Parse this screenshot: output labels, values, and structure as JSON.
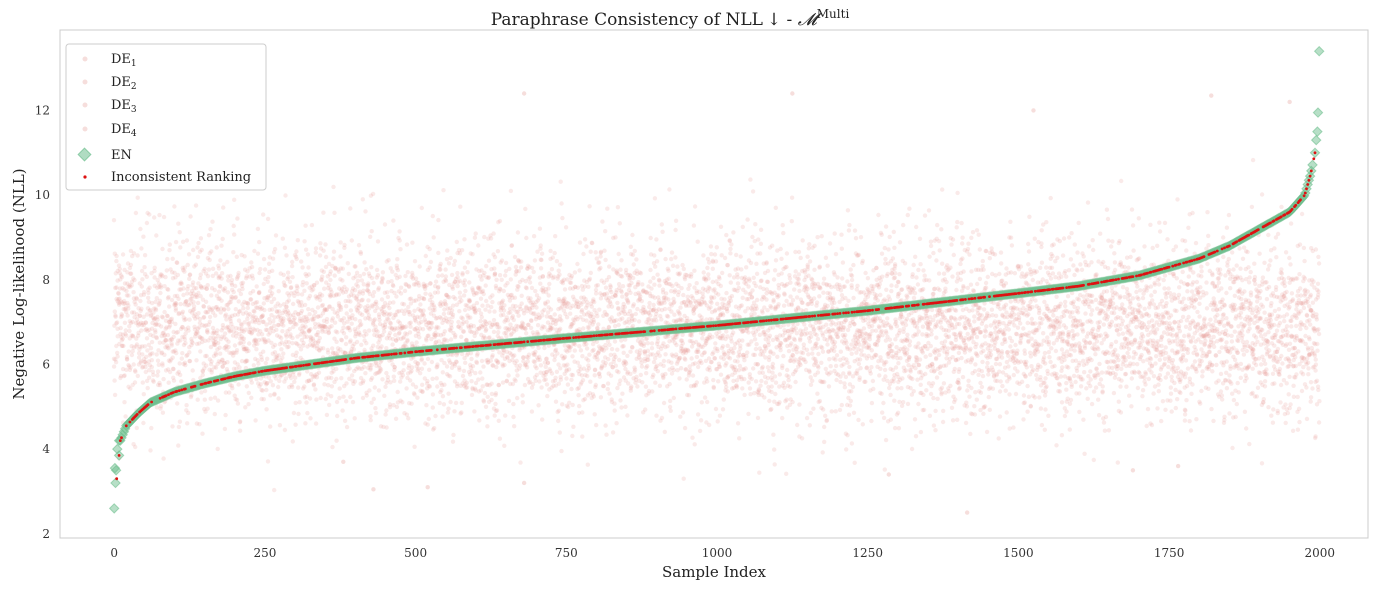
{
  "chart_data": {
    "type": "scatter",
    "title_parts": {
      "main": "Paraphrase Consistency of NLL",
      "arrow": "↓",
      "dash": " - ",
      "model_symbol": "𝓜",
      "superscript": "Multi"
    },
    "xlabel": "Sample Index",
    "ylabel": "Negative Log-likelihood (NLL)",
    "xlim": [
      -90,
      2080
    ],
    "ylim": [
      1.9,
      13.9
    ],
    "x_ticks": [
      0,
      250,
      500,
      750,
      1000,
      1250,
      1500,
      1750,
      2000
    ],
    "y_ticks": [
      2,
      4,
      6,
      8,
      10,
      12
    ],
    "grid": false,
    "legend_position": "top-left",
    "legend": [
      {
        "base": "DE",
        "sub": "1"
      },
      {
        "base": "DE",
        "sub": "2"
      },
      {
        "base": "DE",
        "sub": "3"
      },
      {
        "base": "DE",
        "sub": "4"
      },
      {
        "base": "EN",
        "sub": ""
      },
      {
        "base": "Inconsistent Ranking",
        "sub": ""
      }
    ],
    "colors": {
      "de": "#e6a19a",
      "en": "#6fbf90",
      "inconsistent": "#dd1111"
    },
    "n_samples": 2000,
    "en_curve_knots": [
      [
        0,
        2.6
      ],
      [
        3,
        3.2
      ],
      [
        6,
        3.5
      ],
      [
        10,
        4.2
      ],
      [
        20,
        4.55
      ],
      [
        40,
        4.85
      ],
      [
        60,
        5.1
      ],
      [
        100,
        5.35
      ],
      [
        150,
        5.55
      ],
      [
        200,
        5.72
      ],
      [
        250,
        5.85
      ],
      [
        300,
        5.95
      ],
      [
        400,
        6.15
      ],
      [
        500,
        6.3
      ],
      [
        600,
        6.43
      ],
      [
        750,
        6.62
      ],
      [
        1000,
        6.92
      ],
      [
        1250,
        7.27
      ],
      [
        1500,
        7.68
      ],
      [
        1600,
        7.85
      ],
      [
        1700,
        8.1
      ],
      [
        1800,
        8.5
      ],
      [
        1850,
        8.8
      ],
      [
        1900,
        9.2
      ],
      [
        1950,
        9.6
      ],
      [
        1975,
        10.0
      ],
      [
        1985,
        10.5
      ],
      [
        1992,
        11.0
      ],
      [
        1995,
        11.5
      ],
      [
        1999,
        13.4
      ]
    ],
    "en_highlight_points": [
      {
        "x": 0,
        "y": 2.6
      },
      {
        "x": 2,
        "y": 3.2
      },
      {
        "x": 3,
        "y": 3.5
      },
      {
        "x": 1,
        "y": 3.55
      },
      {
        "x": 5,
        "y": 4.0
      },
      {
        "x": 8,
        "y": 4.2
      },
      {
        "x": 1992,
        "y": 11.0
      },
      {
        "x": 1994,
        "y": 11.3
      },
      {
        "x": 1996,
        "y": 11.5
      },
      {
        "x": 1997,
        "y": 11.95
      },
      {
        "x": 1999,
        "y": 13.4
      }
    ],
    "de_outliers": [
      {
        "x": 680,
        "y": 12.4
      },
      {
        "x": 1125,
        "y": 12.4
      },
      {
        "x": 1820,
        "y": 12.35
      },
      {
        "x": 1525,
        "y": 12.0
      },
      {
        "x": 1415,
        "y": 2.5
      },
      {
        "x": 380,
        "y": 3.7
      },
      {
        "x": 430,
        "y": 3.05
      },
      {
        "x": 520,
        "y": 3.1
      },
      {
        "x": 680,
        "y": 3.2
      },
      {
        "x": 1690,
        "y": 3.5
      },
      {
        "x": 1765,
        "y": 3.6
      },
      {
        "x": 1285,
        "y": 3.4
      },
      {
        "x": 1950,
        "y": 12.2
      }
    ]
  }
}
